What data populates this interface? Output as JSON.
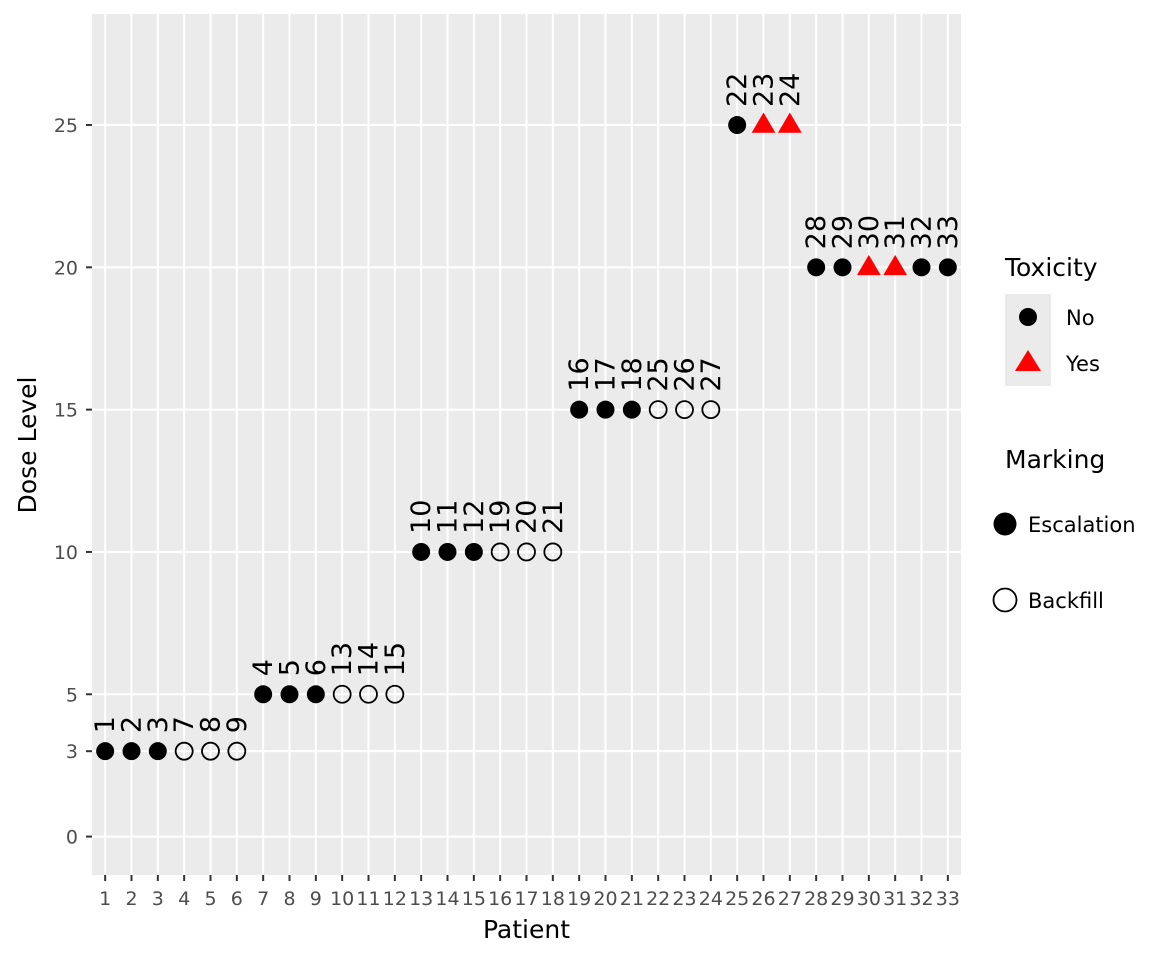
{
  "chart_data": {
    "type": "scatter",
    "xlabel": "Patient",
    "ylabel": "Dose Level",
    "x_ticks": [
      "1",
      "2",
      "3",
      "4",
      "5",
      "6",
      "7",
      "8",
      "9",
      "10",
      "11",
      "12",
      "13",
      "14",
      "15",
      "16",
      "17",
      "18",
      "19",
      "20",
      "21",
      "22",
      "23",
      "24",
      "25",
      "26",
      "27",
      "28",
      "29",
      "30",
      "31",
      "32",
      "33"
    ],
    "y_ticks": [
      0,
      3,
      5,
      10,
      15,
      20,
      25
    ],
    "xlim": [
      0.5,
      33.5
    ],
    "ylim": [
      -1.35,
      28.9
    ],
    "grid": true,
    "legend_placement": "right",
    "colors": {
      "panel": "#ebebeb",
      "grid": "#ffffff",
      "no_tox": "#000000",
      "tox": "#ff0000"
    },
    "points": [
      {
        "x": 1,
        "y": 3,
        "label": "1",
        "toxicity": "No",
        "marking": "Escalation"
      },
      {
        "x": 2,
        "y": 3,
        "label": "2",
        "toxicity": "No",
        "marking": "Escalation"
      },
      {
        "x": 3,
        "y": 3,
        "label": "3",
        "toxicity": "No",
        "marking": "Escalation"
      },
      {
        "x": 4,
        "y": 3,
        "label": "7",
        "toxicity": "No",
        "marking": "Backfill"
      },
      {
        "x": 5,
        "y": 3,
        "label": "8",
        "toxicity": "No",
        "marking": "Backfill"
      },
      {
        "x": 6,
        "y": 3,
        "label": "9",
        "toxicity": "No",
        "marking": "Backfill"
      },
      {
        "x": 7,
        "y": 5,
        "label": "4",
        "toxicity": "No",
        "marking": "Escalation"
      },
      {
        "x": 8,
        "y": 5,
        "label": "5",
        "toxicity": "No",
        "marking": "Escalation"
      },
      {
        "x": 9,
        "y": 5,
        "label": "6",
        "toxicity": "No",
        "marking": "Escalation"
      },
      {
        "x": 10,
        "y": 5,
        "label": "13",
        "toxicity": "No",
        "marking": "Backfill"
      },
      {
        "x": 11,
        "y": 5,
        "label": "14",
        "toxicity": "No",
        "marking": "Backfill"
      },
      {
        "x": 12,
        "y": 5,
        "label": "15",
        "toxicity": "No",
        "marking": "Backfill"
      },
      {
        "x": 13,
        "y": 10,
        "label": "10",
        "toxicity": "No",
        "marking": "Escalation"
      },
      {
        "x": 14,
        "y": 10,
        "label": "11",
        "toxicity": "No",
        "marking": "Escalation"
      },
      {
        "x": 15,
        "y": 10,
        "label": "12",
        "toxicity": "No",
        "marking": "Escalation"
      },
      {
        "x": 16,
        "y": 10,
        "label": "19",
        "toxicity": "No",
        "marking": "Backfill"
      },
      {
        "x": 17,
        "y": 10,
        "label": "20",
        "toxicity": "No",
        "marking": "Backfill"
      },
      {
        "x": 18,
        "y": 10,
        "label": "21",
        "toxicity": "No",
        "marking": "Backfill"
      },
      {
        "x": 19,
        "y": 15,
        "label": "16",
        "toxicity": "No",
        "marking": "Escalation"
      },
      {
        "x": 20,
        "y": 15,
        "label": "17",
        "toxicity": "No",
        "marking": "Escalation"
      },
      {
        "x": 21,
        "y": 15,
        "label": "18",
        "toxicity": "No",
        "marking": "Escalation"
      },
      {
        "x": 22,
        "y": 15,
        "label": "25",
        "toxicity": "No",
        "marking": "Backfill"
      },
      {
        "x": 23,
        "y": 15,
        "label": "26",
        "toxicity": "No",
        "marking": "Backfill"
      },
      {
        "x": 24,
        "y": 15,
        "label": "27",
        "toxicity": "No",
        "marking": "Backfill"
      },
      {
        "x": 25,
        "y": 25,
        "label": "22",
        "toxicity": "No",
        "marking": "Escalation"
      },
      {
        "x": 26,
        "y": 25,
        "label": "23",
        "toxicity": "Yes",
        "marking": "Escalation"
      },
      {
        "x": 27,
        "y": 25,
        "label": "24",
        "toxicity": "Yes",
        "marking": "Escalation"
      },
      {
        "x": 28,
        "y": 20,
        "label": "28",
        "toxicity": "No",
        "marking": "Escalation"
      },
      {
        "x": 29,
        "y": 20,
        "label": "29",
        "toxicity": "No",
        "marking": "Escalation"
      },
      {
        "x": 30,
        "y": 20,
        "label": "30",
        "toxicity": "Yes",
        "marking": "Escalation"
      },
      {
        "x": 31,
        "y": 20,
        "label": "31",
        "toxicity": "Yes",
        "marking": "Escalation"
      },
      {
        "x": 32,
        "y": 20,
        "label": "32",
        "toxicity": "No",
        "marking": "Escalation"
      },
      {
        "x": 33,
        "y": 20,
        "label": "33",
        "toxicity": "No",
        "marking": "Escalation"
      }
    ],
    "legend": {
      "toxicity": {
        "title": "Toxicity",
        "items": [
          {
            "label": "No",
            "shape": "circle"
          },
          {
            "label": "Yes",
            "shape": "triangle"
          }
        ]
      },
      "marking": {
        "title": "Marking",
        "items": [
          {
            "label": "Escalation",
            "shape": "filled-circle"
          },
          {
            "label": "Backfill",
            "shape": "open-circle"
          }
        ]
      }
    }
  }
}
